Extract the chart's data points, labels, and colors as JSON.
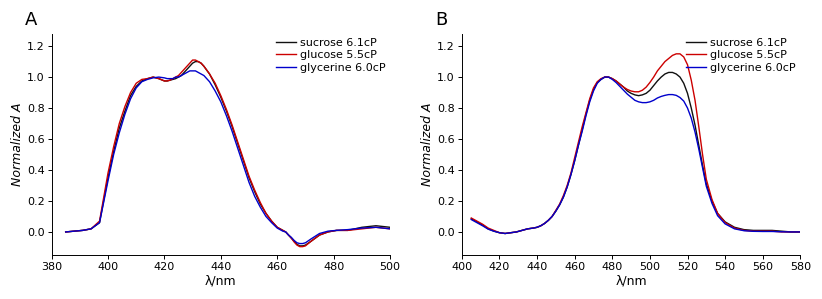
{
  "panel_A": {
    "xlabel": "λ/nm",
    "ylabel": "Normalized A",
    "xlim": [
      380,
      500
    ],
    "ylim": [
      -0.15,
      1.28
    ],
    "yticks": [
      0.0,
      0.2,
      0.4,
      0.6,
      0.8,
      1.0,
      1.2
    ],
    "xticks": [
      380,
      400,
      420,
      440,
      460,
      480,
      500
    ],
    "label": "A",
    "series": [
      {
        "label": "sucrose 6.1cP",
        "color": "#111111",
        "lw": 1.0,
        "x": [
          385,
          388,
          391,
          394,
          397,
          400,
          402,
          404,
          406,
          408,
          410,
          412,
          414,
          416,
          418,
          420,
          421,
          422,
          423,
          424,
          425,
          426,
          427,
          428,
          429,
          430,
          431,
          432,
          433,
          434,
          436,
          438,
          440,
          442,
          444,
          446,
          448,
          450,
          452,
          454,
          456,
          458,
          460,
          462,
          463,
          464,
          465,
          466,
          467,
          468,
          469,
          470,
          472,
          475,
          478,
          481,
          485,
          490,
          495,
          500
        ],
        "y": [
          0.0,
          0.005,
          0.01,
          0.02,
          0.06,
          0.35,
          0.52,
          0.67,
          0.78,
          0.88,
          0.94,
          0.975,
          0.99,
          1.0,
          0.99,
          0.975,
          0.975,
          0.98,
          0.985,
          0.99,
          1.0,
          1.01,
          1.03,
          1.05,
          1.07,
          1.09,
          1.1,
          1.1,
          1.09,
          1.07,
          1.02,
          0.95,
          0.87,
          0.78,
          0.68,
          0.57,
          0.46,
          0.35,
          0.26,
          0.18,
          0.12,
          0.07,
          0.03,
          0.01,
          0.0,
          -0.02,
          -0.04,
          -0.06,
          -0.08,
          -0.09,
          -0.09,
          -0.085,
          -0.06,
          -0.02,
          0.0,
          0.01,
          0.01,
          0.03,
          0.04,
          0.03
        ]
      },
      {
        "label": "glucose 5.5cP",
        "color": "#cc0000",
        "lw": 1.0,
        "x": [
          385,
          388,
          391,
          394,
          397,
          400,
          402,
          404,
          406,
          408,
          410,
          412,
          414,
          416,
          418,
          420,
          421,
          422,
          423,
          424,
          425,
          426,
          427,
          428,
          429,
          430,
          431,
          432,
          433,
          434,
          436,
          438,
          440,
          442,
          444,
          446,
          448,
          450,
          452,
          454,
          456,
          458,
          460,
          462,
          463,
          464,
          465,
          466,
          467,
          468,
          469,
          470,
          472,
          475,
          478,
          481,
          485,
          490,
          495,
          500
        ],
        "y": [
          0.0,
          0.005,
          0.01,
          0.02,
          0.07,
          0.38,
          0.55,
          0.7,
          0.81,
          0.9,
          0.96,
          0.985,
          0.99,
          1.0,
          0.99,
          0.975,
          0.975,
          0.98,
          0.99,
          1.0,
          1.01,
          1.03,
          1.05,
          1.07,
          1.09,
          1.11,
          1.11,
          1.1,
          1.09,
          1.07,
          1.02,
          0.96,
          0.88,
          0.79,
          0.69,
          0.58,
          0.47,
          0.36,
          0.27,
          0.19,
          0.12,
          0.07,
          0.03,
          0.01,
          0.0,
          -0.02,
          -0.04,
          -0.065,
          -0.085,
          -0.095,
          -0.095,
          -0.09,
          -0.06,
          -0.02,
          0.0,
          0.01,
          0.01,
          0.02,
          0.03,
          0.02
        ]
      },
      {
        "label": "glycerine 6.0cP",
        "color": "#0000cc",
        "lw": 1.0,
        "x": [
          385,
          388,
          391,
          394,
          397,
          400,
          402,
          404,
          406,
          408,
          410,
          412,
          414,
          416,
          418,
          420,
          421,
          422,
          423,
          424,
          425,
          426,
          427,
          428,
          429,
          430,
          431,
          432,
          433,
          434,
          436,
          438,
          440,
          442,
          444,
          446,
          448,
          450,
          452,
          454,
          456,
          458,
          460,
          462,
          463,
          464,
          465,
          466,
          467,
          468,
          469,
          470,
          472,
          475,
          478,
          481,
          485,
          490,
          495,
          500
        ],
        "y": [
          0.0,
          0.005,
          0.01,
          0.02,
          0.06,
          0.33,
          0.5,
          0.64,
          0.76,
          0.86,
          0.93,
          0.97,
          0.985,
          0.995,
          1.0,
          0.995,
          0.99,
          0.99,
          0.99,
          1.0,
          1.0,
          1.01,
          1.02,
          1.03,
          1.04,
          1.04,
          1.04,
          1.03,
          1.02,
          1.01,
          0.97,
          0.91,
          0.84,
          0.75,
          0.65,
          0.54,
          0.43,
          0.32,
          0.23,
          0.16,
          0.1,
          0.06,
          0.025,
          0.005,
          0.0,
          -0.02,
          -0.035,
          -0.055,
          -0.07,
          -0.075,
          -0.075,
          -0.07,
          -0.045,
          -0.01,
          0.005,
          0.01,
          0.015,
          0.025,
          0.03,
          0.02
        ]
      }
    ]
  },
  "panel_B": {
    "xlabel": "λ/nm",
    "ylabel": "Normalized A",
    "xlim": [
      400,
      580
    ],
    "ylim": [
      -0.15,
      1.28
    ],
    "yticks": [
      0.0,
      0.2,
      0.4,
      0.6,
      0.8,
      1.0,
      1.2
    ],
    "xticks": [
      400,
      420,
      440,
      460,
      480,
      500,
      520,
      540,
      560,
      580
    ],
    "label": "B",
    "series": [
      {
        "label": "sucrose 6.1cP",
        "color": "#111111",
        "lw": 1.0,
        "x": [
          405,
          408,
          411,
          414,
          417,
          420,
          423,
          426,
          429,
          432,
          435,
          438,
          440,
          442,
          444,
          446,
          448,
          450,
          452,
          454,
          456,
          458,
          460,
          462,
          464,
          466,
          468,
          470,
          472,
          474,
          476,
          478,
          480,
          482,
          484,
          486,
          488,
          490,
          492,
          494,
          496,
          498,
          500,
          502,
          504,
          506,
          508,
          510,
          512,
          514,
          516,
          518,
          520,
          522,
          524,
          526,
          528,
          530,
          533,
          536,
          540,
          545,
          550,
          555,
          560,
          565,
          570,
          575,
          580
        ],
        "y": [
          0.085,
          0.065,
          0.045,
          0.02,
          0.005,
          -0.005,
          -0.01,
          -0.005,
          0.0,
          0.01,
          0.02,
          0.025,
          0.03,
          0.04,
          0.055,
          0.075,
          0.1,
          0.135,
          0.175,
          0.225,
          0.29,
          0.37,
          0.46,
          0.56,
          0.66,
          0.76,
          0.85,
          0.92,
          0.965,
          0.985,
          1.0,
          1.0,
          0.99,
          0.975,
          0.955,
          0.935,
          0.91,
          0.895,
          0.885,
          0.88,
          0.885,
          0.895,
          0.915,
          0.945,
          0.975,
          1.0,
          1.02,
          1.03,
          1.03,
          1.02,
          1.0,
          0.96,
          0.895,
          0.8,
          0.69,
          0.56,
          0.43,
          0.31,
          0.2,
          0.12,
          0.065,
          0.03,
          0.015,
          0.01,
          0.01,
          0.01,
          0.005,
          0.0,
          0.0
        ]
      },
      {
        "label": "glucose 5.5cP",
        "color": "#cc0000",
        "lw": 1.0,
        "x": [
          405,
          408,
          411,
          414,
          417,
          420,
          423,
          426,
          429,
          432,
          435,
          438,
          440,
          442,
          444,
          446,
          448,
          450,
          452,
          454,
          456,
          458,
          460,
          462,
          464,
          466,
          468,
          470,
          472,
          474,
          476,
          478,
          480,
          482,
          484,
          486,
          488,
          490,
          492,
          494,
          496,
          498,
          500,
          502,
          504,
          506,
          508,
          510,
          512,
          514,
          516,
          518,
          520,
          522,
          524,
          526,
          528,
          530,
          533,
          536,
          540,
          545,
          550,
          555,
          560,
          565,
          570,
          575,
          580
        ],
        "y": [
          0.09,
          0.07,
          0.05,
          0.025,
          0.01,
          -0.005,
          -0.01,
          -0.005,
          0.0,
          0.01,
          0.02,
          0.025,
          0.03,
          0.04,
          0.055,
          0.075,
          0.1,
          0.14,
          0.18,
          0.235,
          0.3,
          0.38,
          0.48,
          0.58,
          0.68,
          0.77,
          0.86,
          0.93,
          0.97,
          0.99,
          1.0,
          1.0,
          0.99,
          0.975,
          0.955,
          0.935,
          0.92,
          0.91,
          0.905,
          0.905,
          0.915,
          0.935,
          0.965,
          1.0,
          1.04,
          1.07,
          1.1,
          1.12,
          1.14,
          1.15,
          1.15,
          1.13,
          1.08,
          0.98,
          0.85,
          0.68,
          0.5,
          0.34,
          0.21,
          0.12,
          0.06,
          0.025,
          0.01,
          0.005,
          0.005,
          0.005,
          0.0,
          0.0,
          0.0
        ]
      },
      {
        "label": "glycerine 6.0cP",
        "color": "#0000cc",
        "lw": 1.0,
        "x": [
          405,
          408,
          411,
          414,
          417,
          420,
          423,
          426,
          429,
          432,
          435,
          438,
          440,
          442,
          444,
          446,
          448,
          450,
          452,
          454,
          456,
          458,
          460,
          462,
          464,
          466,
          468,
          470,
          472,
          474,
          476,
          478,
          480,
          482,
          484,
          486,
          488,
          490,
          492,
          494,
          496,
          498,
          500,
          502,
          504,
          506,
          508,
          510,
          512,
          514,
          516,
          518,
          520,
          522,
          524,
          526,
          528,
          530,
          533,
          536,
          540,
          545,
          550,
          555,
          560,
          565,
          570,
          575,
          580
        ],
        "y": [
          0.08,
          0.06,
          0.04,
          0.018,
          0.005,
          -0.005,
          -0.01,
          -0.005,
          0.0,
          0.01,
          0.02,
          0.025,
          0.03,
          0.04,
          0.055,
          0.075,
          0.1,
          0.135,
          0.175,
          0.225,
          0.29,
          0.37,
          0.46,
          0.56,
          0.65,
          0.75,
          0.84,
          0.91,
          0.96,
          0.985,
          1.0,
          1.0,
          0.985,
          0.965,
          0.94,
          0.915,
          0.89,
          0.87,
          0.85,
          0.84,
          0.835,
          0.835,
          0.84,
          0.85,
          0.865,
          0.875,
          0.882,
          0.887,
          0.887,
          0.882,
          0.868,
          0.845,
          0.8,
          0.735,
          0.645,
          0.535,
          0.415,
          0.295,
          0.185,
          0.105,
          0.052,
          0.02,
          0.008,
          0.004,
          0.003,
          0.003,
          0.001,
          0.0,
          0.0
        ]
      }
    ]
  },
  "background_color": "#ffffff",
  "font_size": 9,
  "tick_font_size": 8,
  "legend_font_size": 8
}
